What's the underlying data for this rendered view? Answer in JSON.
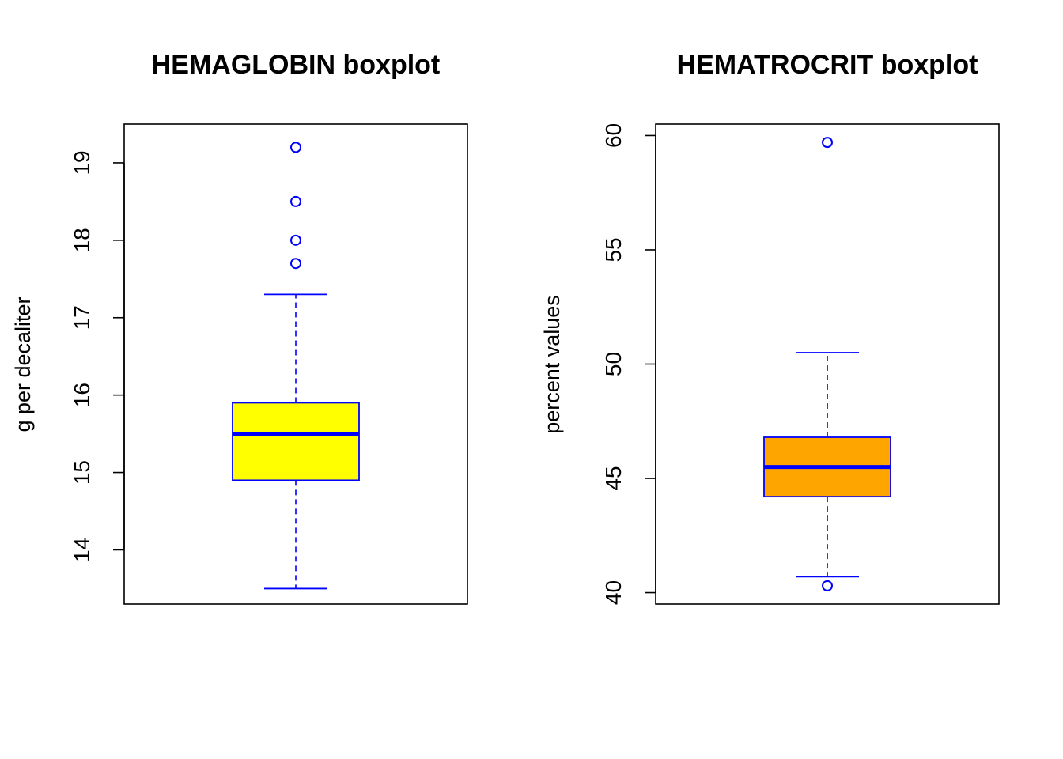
{
  "chart_data": [
    {
      "type": "boxplot",
      "title": "HEMAGLOBIN boxplot",
      "xlabel": "",
      "ylabel": "g per decaliter",
      "ylim": [
        13.3,
        19.5
      ],
      "yticks": [
        14,
        15,
        16,
        17,
        18,
        19
      ],
      "box": {
        "lower_whisker": 13.5,
        "q1": 14.9,
        "median": 15.5,
        "q3": 15.9,
        "upper_whisker": 17.3
      },
      "outliers": [
        17.7,
        18.0,
        18.5,
        19.2
      ],
      "colors": {
        "fill": "#ffff00",
        "border": "#0000ff"
      }
    },
    {
      "type": "boxplot",
      "title": "HEMATROCRIT boxplot",
      "xlabel": "",
      "ylabel": "percent values",
      "ylim": [
        39.5,
        60.5
      ],
      "yticks": [
        40,
        45,
        50,
        55,
        60
      ],
      "box": {
        "lower_whisker": 40.7,
        "q1": 44.2,
        "median": 45.5,
        "q3": 46.8,
        "upper_whisker": 50.5
      },
      "outliers": [
        40.3,
        59.7
      ],
      "colors": {
        "fill": "#ffa500",
        "border": "#0000ff"
      }
    }
  ]
}
